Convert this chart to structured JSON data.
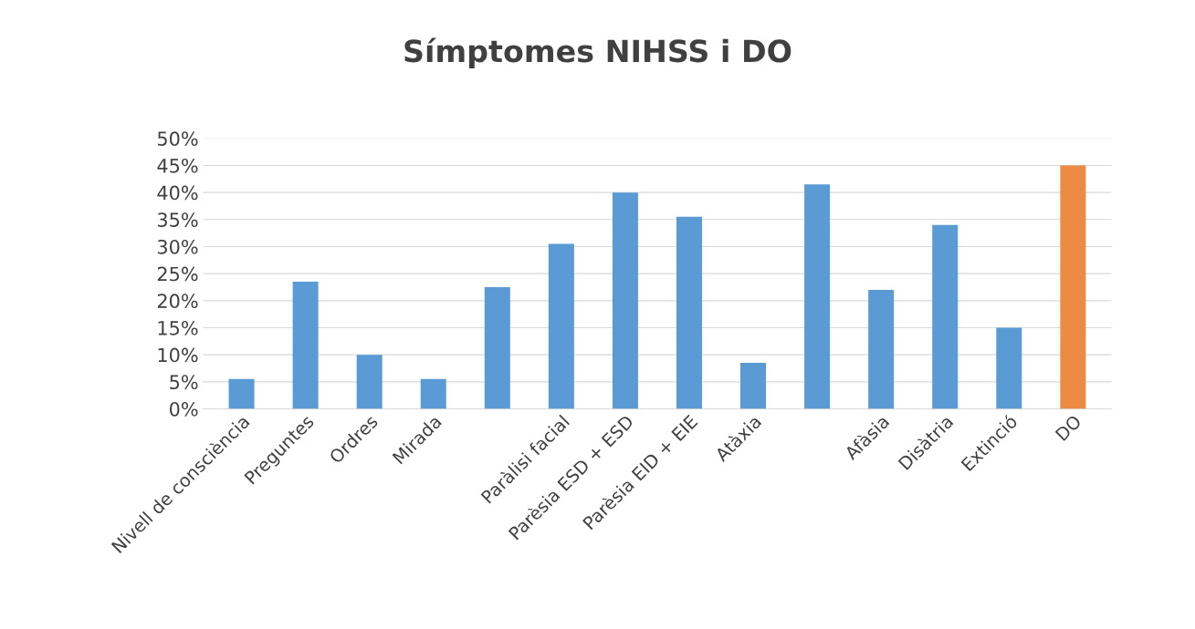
{
  "chart_data": {
    "type": "bar",
    "title": "Símptomes NIHSS i DO",
    "categories": [
      "Nivell de consciència",
      "Preguntes",
      "Ordres",
      "Mirada",
      null,
      "Paràlisi facial",
      "Parèsia ESD + ESD",
      "Parèsia EID + EIE",
      "Atàxia",
      null,
      "Afàsia",
      "Disàtria",
      "Extinció",
      "DO"
    ],
    "values": [
      5.5,
      23.5,
      10,
      5.5,
      22.5,
      30.5,
      40,
      35.5,
      8.5,
      41.5,
      22,
      34,
      15,
      45
    ],
    "colors": [
      "#5b9bd5",
      "#5b9bd5",
      "#5b9bd5",
      "#5b9bd5",
      "#5b9bd5",
      "#5b9bd5",
      "#5b9bd5",
      "#5b9bd5",
      "#5b9bd5",
      "#5b9bd5",
      "#5b9bd5",
      "#5b9bd5",
      "#5b9bd5",
      "#ed8b45"
    ],
    "ylim": [
      0,
      50
    ],
    "yticks": [
      {
        "value": 0,
        "label": "0%"
      },
      {
        "value": 5,
        "label": "5%"
      },
      {
        "value": 10,
        "label": "10%"
      },
      {
        "value": 15,
        "label": "15%"
      },
      {
        "value": 20,
        "label": "20%"
      },
      {
        "value": 25,
        "label": "25%"
      },
      {
        "value": 30,
        "label": "30%"
      },
      {
        "value": 35,
        "label": "35%"
      },
      {
        "value": 40,
        "label": "40%"
      },
      {
        "value": 45,
        "label": "45%"
      },
      {
        "value": 50,
        "label": "50%"
      }
    ],
    "grid": "y",
    "legend": false
  }
}
